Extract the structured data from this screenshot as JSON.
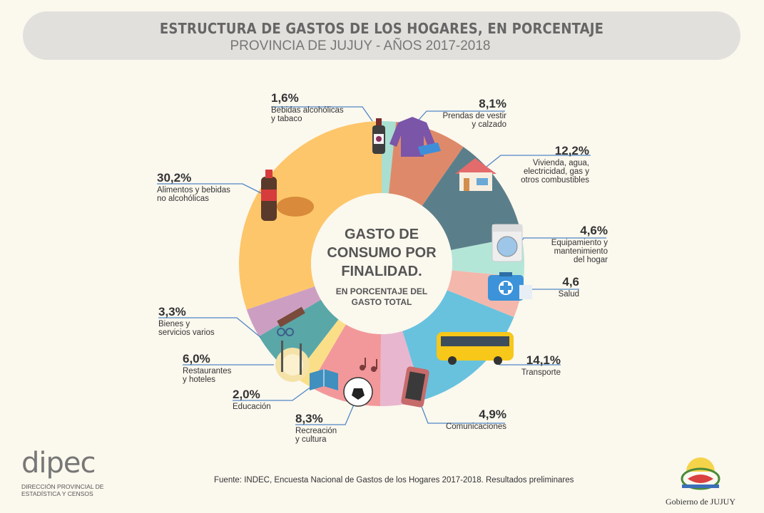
{
  "header": {
    "title": "ESTRUCTURA DE GASTOS DE LOS HOGARES, EN PORCENTAJE",
    "subtitle": "PROVINCIA DE JUJUY - AÑOS 2017-2018"
  },
  "center": {
    "title_line1": "GASTO DE",
    "title_line2": "CONSUMO POR",
    "title_line3": "FINALIDAD.",
    "sub_line1": "EN PORCENTAJE DEL",
    "sub_line2": "GASTO TOTAL"
  },
  "chart_data": {
    "type": "pie",
    "title": "Gasto de consumo por finalidad. En porcentaje del gasto total",
    "style": "donut",
    "slices": [
      {
        "pct": "1,6%",
        "value": 1.6,
        "label1": "Bebidas alcohólicas",
        "label2": "y tabaco",
        "color": "#a8dfd0"
      },
      {
        "pct": "8,1%",
        "value": 8.1,
        "label1": "Prendas de vestir",
        "label2": "y calzado",
        "color": "#de8a6a"
      },
      {
        "pct": "12,2%",
        "value": 12.2,
        "label1": "Vivienda, agua,",
        "label2": "electricidad, gas y",
        "label3": "otros combustibles",
        "color": "#5b7f8a"
      },
      {
        "pct": "4,6%",
        "value": 4.6,
        "label1": "Equipamiento y",
        "label2": "mantenimiento",
        "label3": "del hogar",
        "color": "#b4e6d8"
      },
      {
        "pct": "4,6",
        "value": 4.6,
        "label1": "Salud",
        "color": "#f4b7ab"
      },
      {
        "pct": "14,1%",
        "value": 14.1,
        "label1": "Transporte",
        "color": "#68c2de"
      },
      {
        "pct": "4,9%",
        "value": 4.9,
        "label1": "Comunicaciones",
        "color": "#e8b6cf"
      },
      {
        "pct": "8,3%",
        "value": 8.3,
        "label1": "Recreación",
        "label2": "y cultura",
        "color": "#f2989a"
      },
      {
        "pct": "2,0%",
        "value": 2.0,
        "label1": "Educación",
        "color": "#fbdf88"
      },
      {
        "pct": "6,0%",
        "value": 6.0,
        "label1": "Restaurantes",
        "label2": "y hoteles",
        "color": "#5aa7a8"
      },
      {
        "pct": "3,3%",
        "value": 3.3,
        "label1": "Bienes y",
        "label2": "servicios varios",
        "color": "#cc9fc2"
      },
      {
        "pct": "30,2%",
        "value": 30.2,
        "label1": "Alimentos y bebidas",
        "label2": "no alcohólicas",
        "color": "#fdc66a"
      }
    ]
  },
  "footer": {
    "source": "Fuente: INDEC, Encuesta Nacional de Gastos de los Hogares 2017-2018. Resultados preliminares",
    "dipec_name": "dipec",
    "dipec_line1": "DIRECCIÓN PROVINCIAL DE",
    "dipec_line2": "ESTADÍSTICA Y CENSOS",
    "gov_name": "Gobierno de JUJUY"
  },
  "colors": {
    "background": "#fbf8ee",
    "banner": "#e2e0dc",
    "leader_line": "#4f86c6"
  }
}
